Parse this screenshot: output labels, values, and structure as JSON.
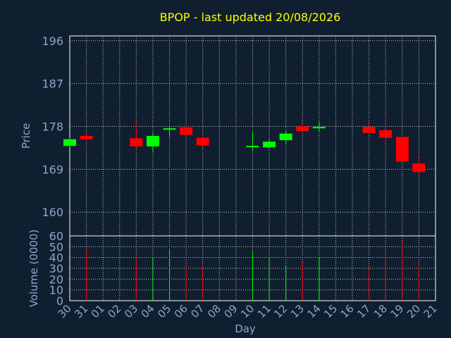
{
  "chart_data": {
    "type": "candlestick",
    "title": "BPOP - last updated 20/08/2026",
    "xlabel": "Day",
    "categories": [
      "30",
      "31",
      "01",
      "02",
      "03",
      "04",
      "05",
      "06",
      "07",
      "08",
      "09",
      "10",
      "11",
      "12",
      "13",
      "14",
      "15",
      "16",
      "17",
      "18",
      "19",
      "20",
      "21"
    ],
    "price_panel": {
      "ylabel": "Price",
      "ylim": [
        155,
        197
      ],
      "yticks": [
        160,
        169,
        178,
        187,
        196
      ],
      "up_color": "#00ff00",
      "down_color": "#ff0000",
      "candles": [
        {
          "day": "30",
          "open": 173.9,
          "close": 175.3,
          "high": 175.6,
          "low": 173.6
        },
        {
          "day": "31",
          "open": 176.0,
          "close": 175.3,
          "high": 176.5,
          "low": 175.0
        },
        {
          "day": "03",
          "open": 175.5,
          "close": 173.8,
          "high": 179.0,
          "low": 173.5
        },
        {
          "day": "04",
          "open": 173.8,
          "close": 176.0,
          "high": 176.7,
          "low": 172.5
        },
        {
          "day": "05",
          "open": 177.4,
          "close": 177.6,
          "high": 177.9,
          "low": 175.8
        },
        {
          "day": "06",
          "open": 177.8,
          "close": 176.2,
          "high": 178.5,
          "low": 175.9
        },
        {
          "day": "07",
          "open": 175.6,
          "close": 174.0,
          "high": 175.9,
          "low": 173.6
        },
        {
          "day": "10",
          "open": 173.6,
          "close": 173.9,
          "high": 176.8,
          "low": 172.7
        },
        {
          "day": "11",
          "open": 173.6,
          "close": 174.8,
          "high": 175.4,
          "low": 173.5
        },
        {
          "day": "12",
          "open": 175.1,
          "close": 176.5,
          "high": 176.9,
          "low": 174.4
        },
        {
          "day": "13",
          "open": 178.0,
          "close": 177.0,
          "high": 178.6,
          "low": 176.7
        },
        {
          "day": "14",
          "open": 177.6,
          "close": 177.9,
          "high": 179.0,
          "low": 176.8
        },
        {
          "day": "17",
          "open": 177.9,
          "close": 176.6,
          "high": 178.5,
          "low": 176.4
        },
        {
          "day": "18",
          "open": 177.2,
          "close": 175.6,
          "high": 178.9,
          "low": 174.4
        },
        {
          "day": "19",
          "open": 175.8,
          "close": 170.6,
          "high": 175.9,
          "low": 170.4
        },
        {
          "day": "20",
          "open": 170.2,
          "close": 168.4,
          "high": 171.5,
          "low": 168.2
        }
      ]
    },
    "volume_panel": {
      "ylabel": "Volume (0000)",
      "ylim": [
        0,
        60
      ],
      "yticks": [
        0,
        10,
        20,
        30,
        40,
        50,
        60
      ],
      "bars": [
        {
          "day": "31",
          "value": 47,
          "dir": "down"
        },
        {
          "day": "03",
          "value": 40,
          "dir": "down"
        },
        {
          "day": "04",
          "value": 40,
          "dir": "up"
        },
        {
          "day": "05",
          "value": 47,
          "dir": "up"
        },
        {
          "day": "06",
          "value": 32,
          "dir": "down"
        },
        {
          "day": "07",
          "value": 32,
          "dir": "down"
        },
        {
          "day": "10",
          "value": 46,
          "dir": "up"
        },
        {
          "day": "11",
          "value": 40,
          "dir": "up"
        },
        {
          "day": "12",
          "value": 32,
          "dir": "up"
        },
        {
          "day": "13",
          "value": 36,
          "dir": "down"
        },
        {
          "day": "14",
          "value": 40,
          "dir": "up"
        },
        {
          "day": "17",
          "value": 32,
          "dir": "down"
        },
        {
          "day": "18",
          "value": 45,
          "dir": "down"
        },
        {
          "day": "19",
          "value": 55,
          "dir": "down"
        },
        {
          "day": "20",
          "value": 35,
          "dir": "down"
        }
      ]
    },
    "grid": true
  }
}
